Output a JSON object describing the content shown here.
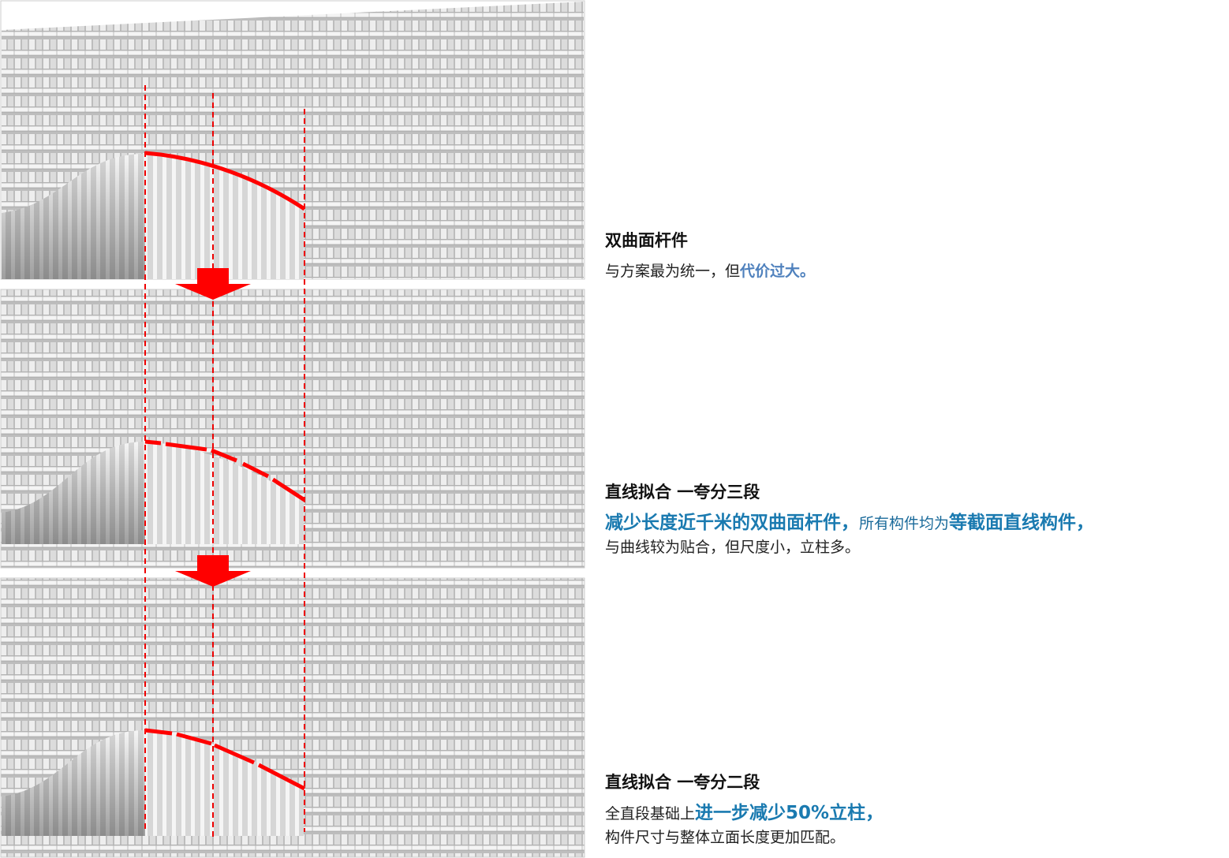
{
  "sections": [
    {
      "title": "双曲面杆件",
      "lines": [
        [
          {
            "text": "与方案最为统一，但",
            "color": "#222222"
          },
          {
            "text": "代价过大。",
            "color": "#4f81bd",
            "bold": true
          }
        ]
      ]
    },
    {
      "title": "直线拟合 一夸分三段",
      "lines": [
        [
          {
            "text": "减少长度近千米的双曲面杆件，",
            "color": "#1a7ab0",
            "bold": true,
            "big": true
          },
          {
            "text": "所有构件均为",
            "color": "#1a6a9a"
          },
          {
            "text": "等截面直线构件，",
            "color": "#1a7ab0",
            "bold": true,
            "big": true
          }
        ],
        [
          {
            "text": "与曲线较为贴合，但尺度小，立柱多。",
            "color": "#222222"
          }
        ]
      ]
    },
    {
      "title": "直线拟合 一夸分二段",
      "lines": [
        [
          {
            "text": "全直段基础上",
            "color": "#222222"
          },
          {
            "text": "进一步减少50%立柱，",
            "color": "#1a7ab0",
            "bold": true,
            "big": true
          }
        ],
        [
          {
            "text": "构件尺寸与整体立面长度更加匹配。",
            "color": "#222222"
          }
        ]
      ]
    }
  ]
}
